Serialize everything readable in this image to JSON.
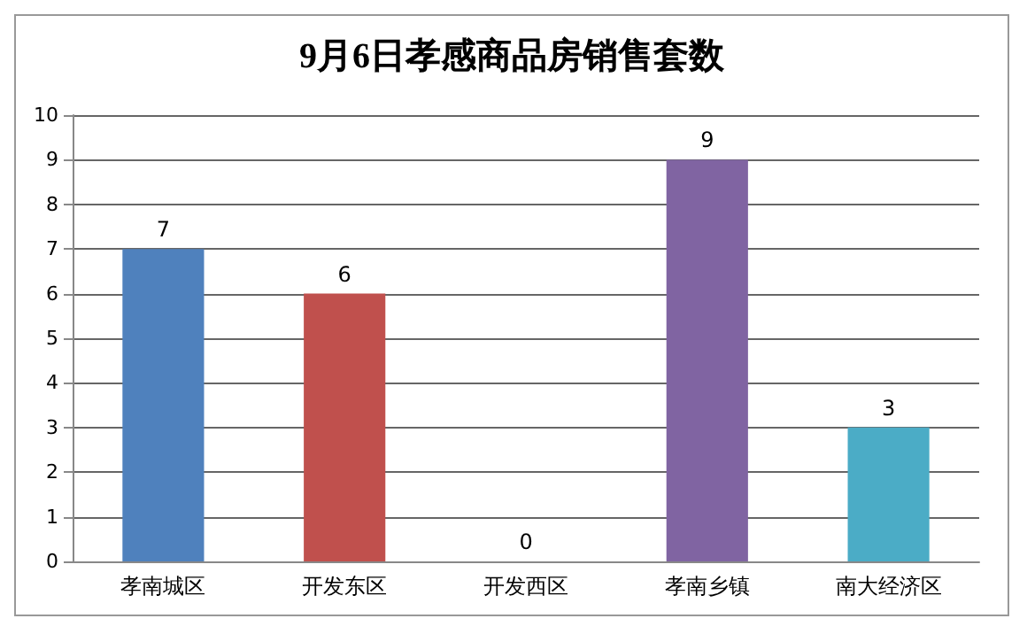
{
  "chart_data": {
    "type": "bar",
    "title": "9月6日孝感商品房销售套数",
    "categories": [
      "孝南城区",
      "开发东区",
      "开发西区",
      "孝南乡镇",
      "南大经济区"
    ],
    "values": [
      7,
      6,
      0,
      9,
      3
    ],
    "colors": [
      "#4f81bd",
      "#c0504d",
      "#9bbb59",
      "#8064a2",
      "#4bacc6"
    ],
    "ylim": [
      0,
      10
    ],
    "yticks": [
      0,
      1,
      2,
      3,
      4,
      5,
      6,
      7,
      8,
      9,
      10
    ],
    "grid": "y",
    "data_labels": true
  }
}
